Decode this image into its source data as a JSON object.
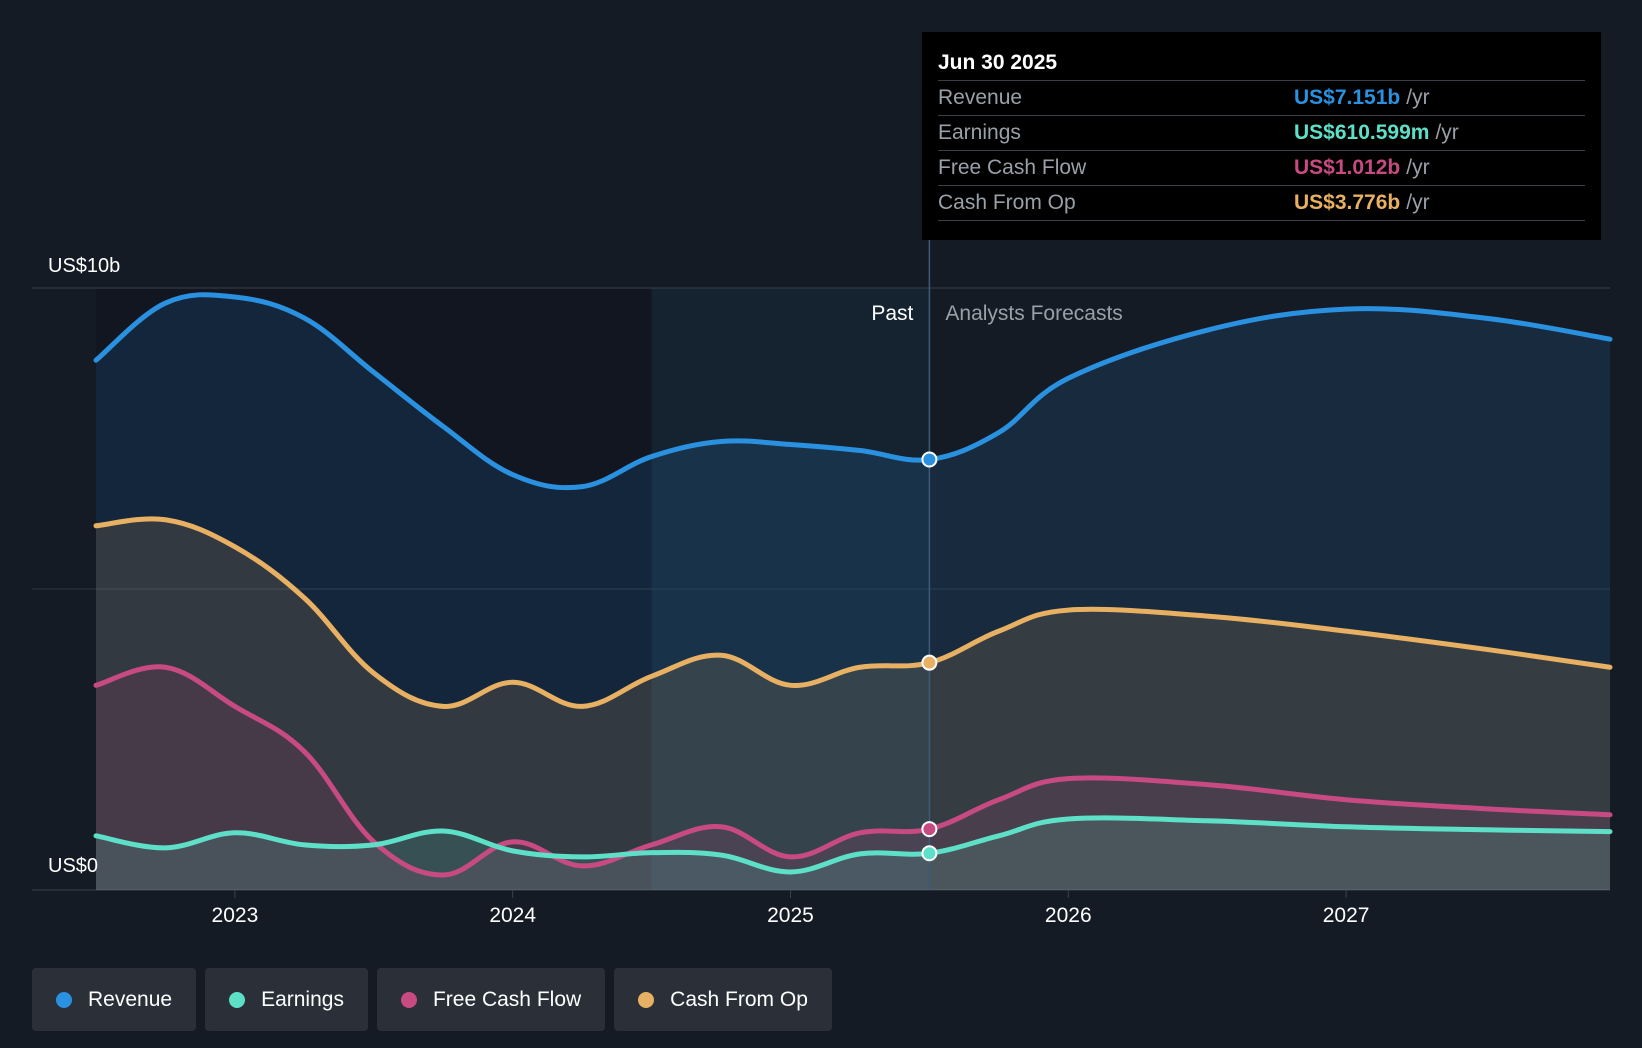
{
  "chart_data": {
    "type": "area",
    "y_axis": {
      "top_label": "US$10b",
      "bottom_label": "US$0",
      "ylim": [
        0,
        10
      ]
    },
    "x_ticks": [
      "2023",
      "2024",
      "2025",
      "2026",
      "2027"
    ],
    "xlim": [
      2022.5,
      2027.95
    ],
    "divider_x": 2025.5,
    "highlight_start_x": 2024.5,
    "regions": {
      "past": "Past",
      "forecast": "Analysts Forecasts"
    },
    "series": [
      {
        "name": "Revenue",
        "color": "#2a91e0",
        "points": [
          [
            2022.5,
            8.8
          ],
          [
            2022.75,
            9.75
          ],
          [
            2023.0,
            9.85
          ],
          [
            2023.25,
            9.5
          ],
          [
            2023.5,
            8.6
          ],
          [
            2023.75,
            7.7
          ],
          [
            2024.0,
            6.9
          ],
          [
            2024.25,
            6.7
          ],
          [
            2024.5,
            7.2
          ],
          [
            2024.75,
            7.45
          ],
          [
            2025.0,
            7.4
          ],
          [
            2025.25,
            7.3
          ],
          [
            2025.5,
            7.151
          ],
          [
            2025.75,
            7.6
          ],
          [
            2026.0,
            8.5
          ],
          [
            2026.5,
            9.3
          ],
          [
            2027.0,
            9.65
          ],
          [
            2027.5,
            9.5
          ],
          [
            2027.95,
            9.15
          ]
        ]
      },
      {
        "name": "Cash From Op",
        "color": "#e8b062",
        "points": [
          [
            2022.5,
            6.05
          ],
          [
            2022.75,
            6.15
          ],
          [
            2023.0,
            5.7
          ],
          [
            2023.25,
            4.85
          ],
          [
            2023.5,
            3.6
          ],
          [
            2023.75,
            3.05
          ],
          [
            2024.0,
            3.45
          ],
          [
            2024.25,
            3.05
          ],
          [
            2024.5,
            3.55
          ],
          [
            2024.75,
            3.9
          ],
          [
            2025.0,
            3.4
          ],
          [
            2025.25,
            3.7
          ],
          [
            2025.5,
            3.776
          ],
          [
            2025.75,
            4.3
          ],
          [
            2026.0,
            4.65
          ],
          [
            2026.5,
            4.55
          ],
          [
            2027.0,
            4.3
          ],
          [
            2027.5,
            4.0
          ],
          [
            2027.95,
            3.7
          ]
        ]
      },
      {
        "name": "Free Cash Flow",
        "color": "#c84a82",
        "points": [
          [
            2022.5,
            3.4
          ],
          [
            2022.75,
            3.7
          ],
          [
            2023.0,
            3.05
          ],
          [
            2023.25,
            2.3
          ],
          [
            2023.5,
            0.8
          ],
          [
            2023.75,
            0.25
          ],
          [
            2024.0,
            0.8
          ],
          [
            2024.25,
            0.4
          ],
          [
            2024.5,
            0.75
          ],
          [
            2024.75,
            1.05
          ],
          [
            2025.0,
            0.55
          ],
          [
            2025.25,
            0.95
          ],
          [
            2025.5,
            1.012
          ],
          [
            2025.75,
            1.5
          ],
          [
            2026.0,
            1.85
          ],
          [
            2026.5,
            1.75
          ],
          [
            2027.0,
            1.5
          ],
          [
            2027.5,
            1.35
          ],
          [
            2027.95,
            1.25
          ]
        ]
      },
      {
        "name": "Earnings",
        "color": "#5ee0c8",
        "points": [
          [
            2022.5,
            0.9
          ],
          [
            2022.75,
            0.7
          ],
          [
            2023.0,
            0.95
          ],
          [
            2023.25,
            0.75
          ],
          [
            2023.5,
            0.75
          ],
          [
            2023.75,
            0.98
          ],
          [
            2024.0,
            0.65
          ],
          [
            2024.25,
            0.55
          ],
          [
            2024.5,
            0.62
          ],
          [
            2024.75,
            0.58
          ],
          [
            2025.0,
            0.3
          ],
          [
            2025.25,
            0.6
          ],
          [
            2025.5,
            0.61
          ],
          [
            2025.75,
            0.9
          ],
          [
            2026.0,
            1.18
          ],
          [
            2026.5,
            1.15
          ],
          [
            2027.0,
            1.05
          ],
          [
            2027.5,
            1.0
          ],
          [
            2027.95,
            0.97
          ]
        ]
      }
    ],
    "markers": [
      {
        "series": "Revenue",
        "x": 2025.5,
        "y": 7.151
      },
      {
        "series": "Cash From Op",
        "x": 2025.5,
        "y": 3.776
      },
      {
        "series": "Free Cash Flow",
        "x": 2025.5,
        "y": 1.012
      },
      {
        "series": "Earnings",
        "x": 2025.5,
        "y": 0.61
      }
    ]
  },
  "tooltip": {
    "date": "Jun 30 2025",
    "rows": [
      {
        "label": "Revenue",
        "value": "US$7.151b",
        "unit": "/yr",
        "color": "#2a91e0"
      },
      {
        "label": "Earnings",
        "value": "US$610.599m",
        "unit": "/yr",
        "color": "#5ee0c8"
      },
      {
        "label": "Free Cash Flow",
        "value": "US$1.012b",
        "unit": "/yr",
        "color": "#c84a82"
      },
      {
        "label": "Cash From Op",
        "value": "US$3.776b",
        "unit": "/yr",
        "color": "#e8b062"
      }
    ]
  },
  "legend": [
    {
      "label": "Revenue",
      "color": "#2a91e0"
    },
    {
      "label": "Earnings",
      "color": "#5ee0c8"
    },
    {
      "label": "Free Cash Flow",
      "color": "#c84a82"
    },
    {
      "label": "Cash From Op",
      "color": "#e8b062"
    }
  ]
}
